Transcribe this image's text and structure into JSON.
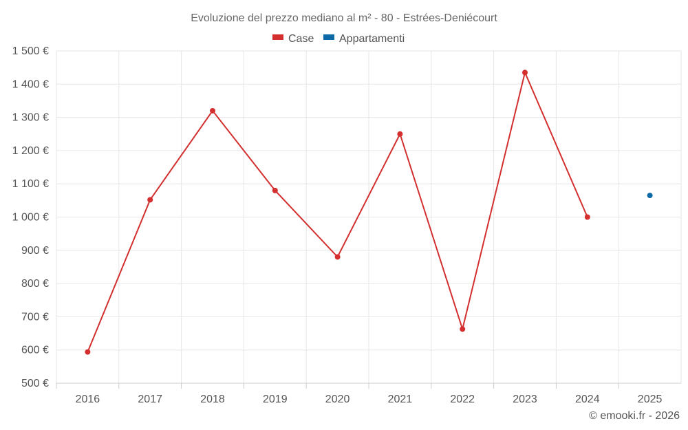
{
  "chart_data": {
    "type": "line",
    "title": "Evoluzione del prezzo mediano al m² - 80 - Estrées-Deniécourt",
    "categories": [
      "2016",
      "2017",
      "2018",
      "2019",
      "2020",
      "2021",
      "2022",
      "2023",
      "2024",
      "2025"
    ],
    "series": [
      {
        "name": "Case",
        "color": "#d32f2f",
        "values": [
          594,
          1052,
          1320,
          1080,
          880,
          1250,
          663,
          1435,
          1000,
          null
        ]
      },
      {
        "name": "Appartamenti",
        "color": "#0e6aa6",
        "values": [
          null,
          null,
          null,
          null,
          null,
          null,
          null,
          null,
          null,
          1065
        ]
      }
    ],
    "ylim": [
      500,
      1500
    ],
    "yticks": [
      500,
      600,
      700,
      800,
      900,
      1000,
      1100,
      1200,
      1300,
      1400,
      1500
    ],
    "ytick_labels": [
      "500 €",
      "600 €",
      "700 €",
      "800 €",
      "900 €",
      "1 000 €",
      "1 100 €",
      "1 200 €",
      "1 300 €",
      "1 400 €",
      "1 500 €"
    ],
    "xlabel": "",
    "ylabel": "",
    "grid": true,
    "legend_position": "top-center"
  },
  "credit": "© emooki.fr - 2026"
}
